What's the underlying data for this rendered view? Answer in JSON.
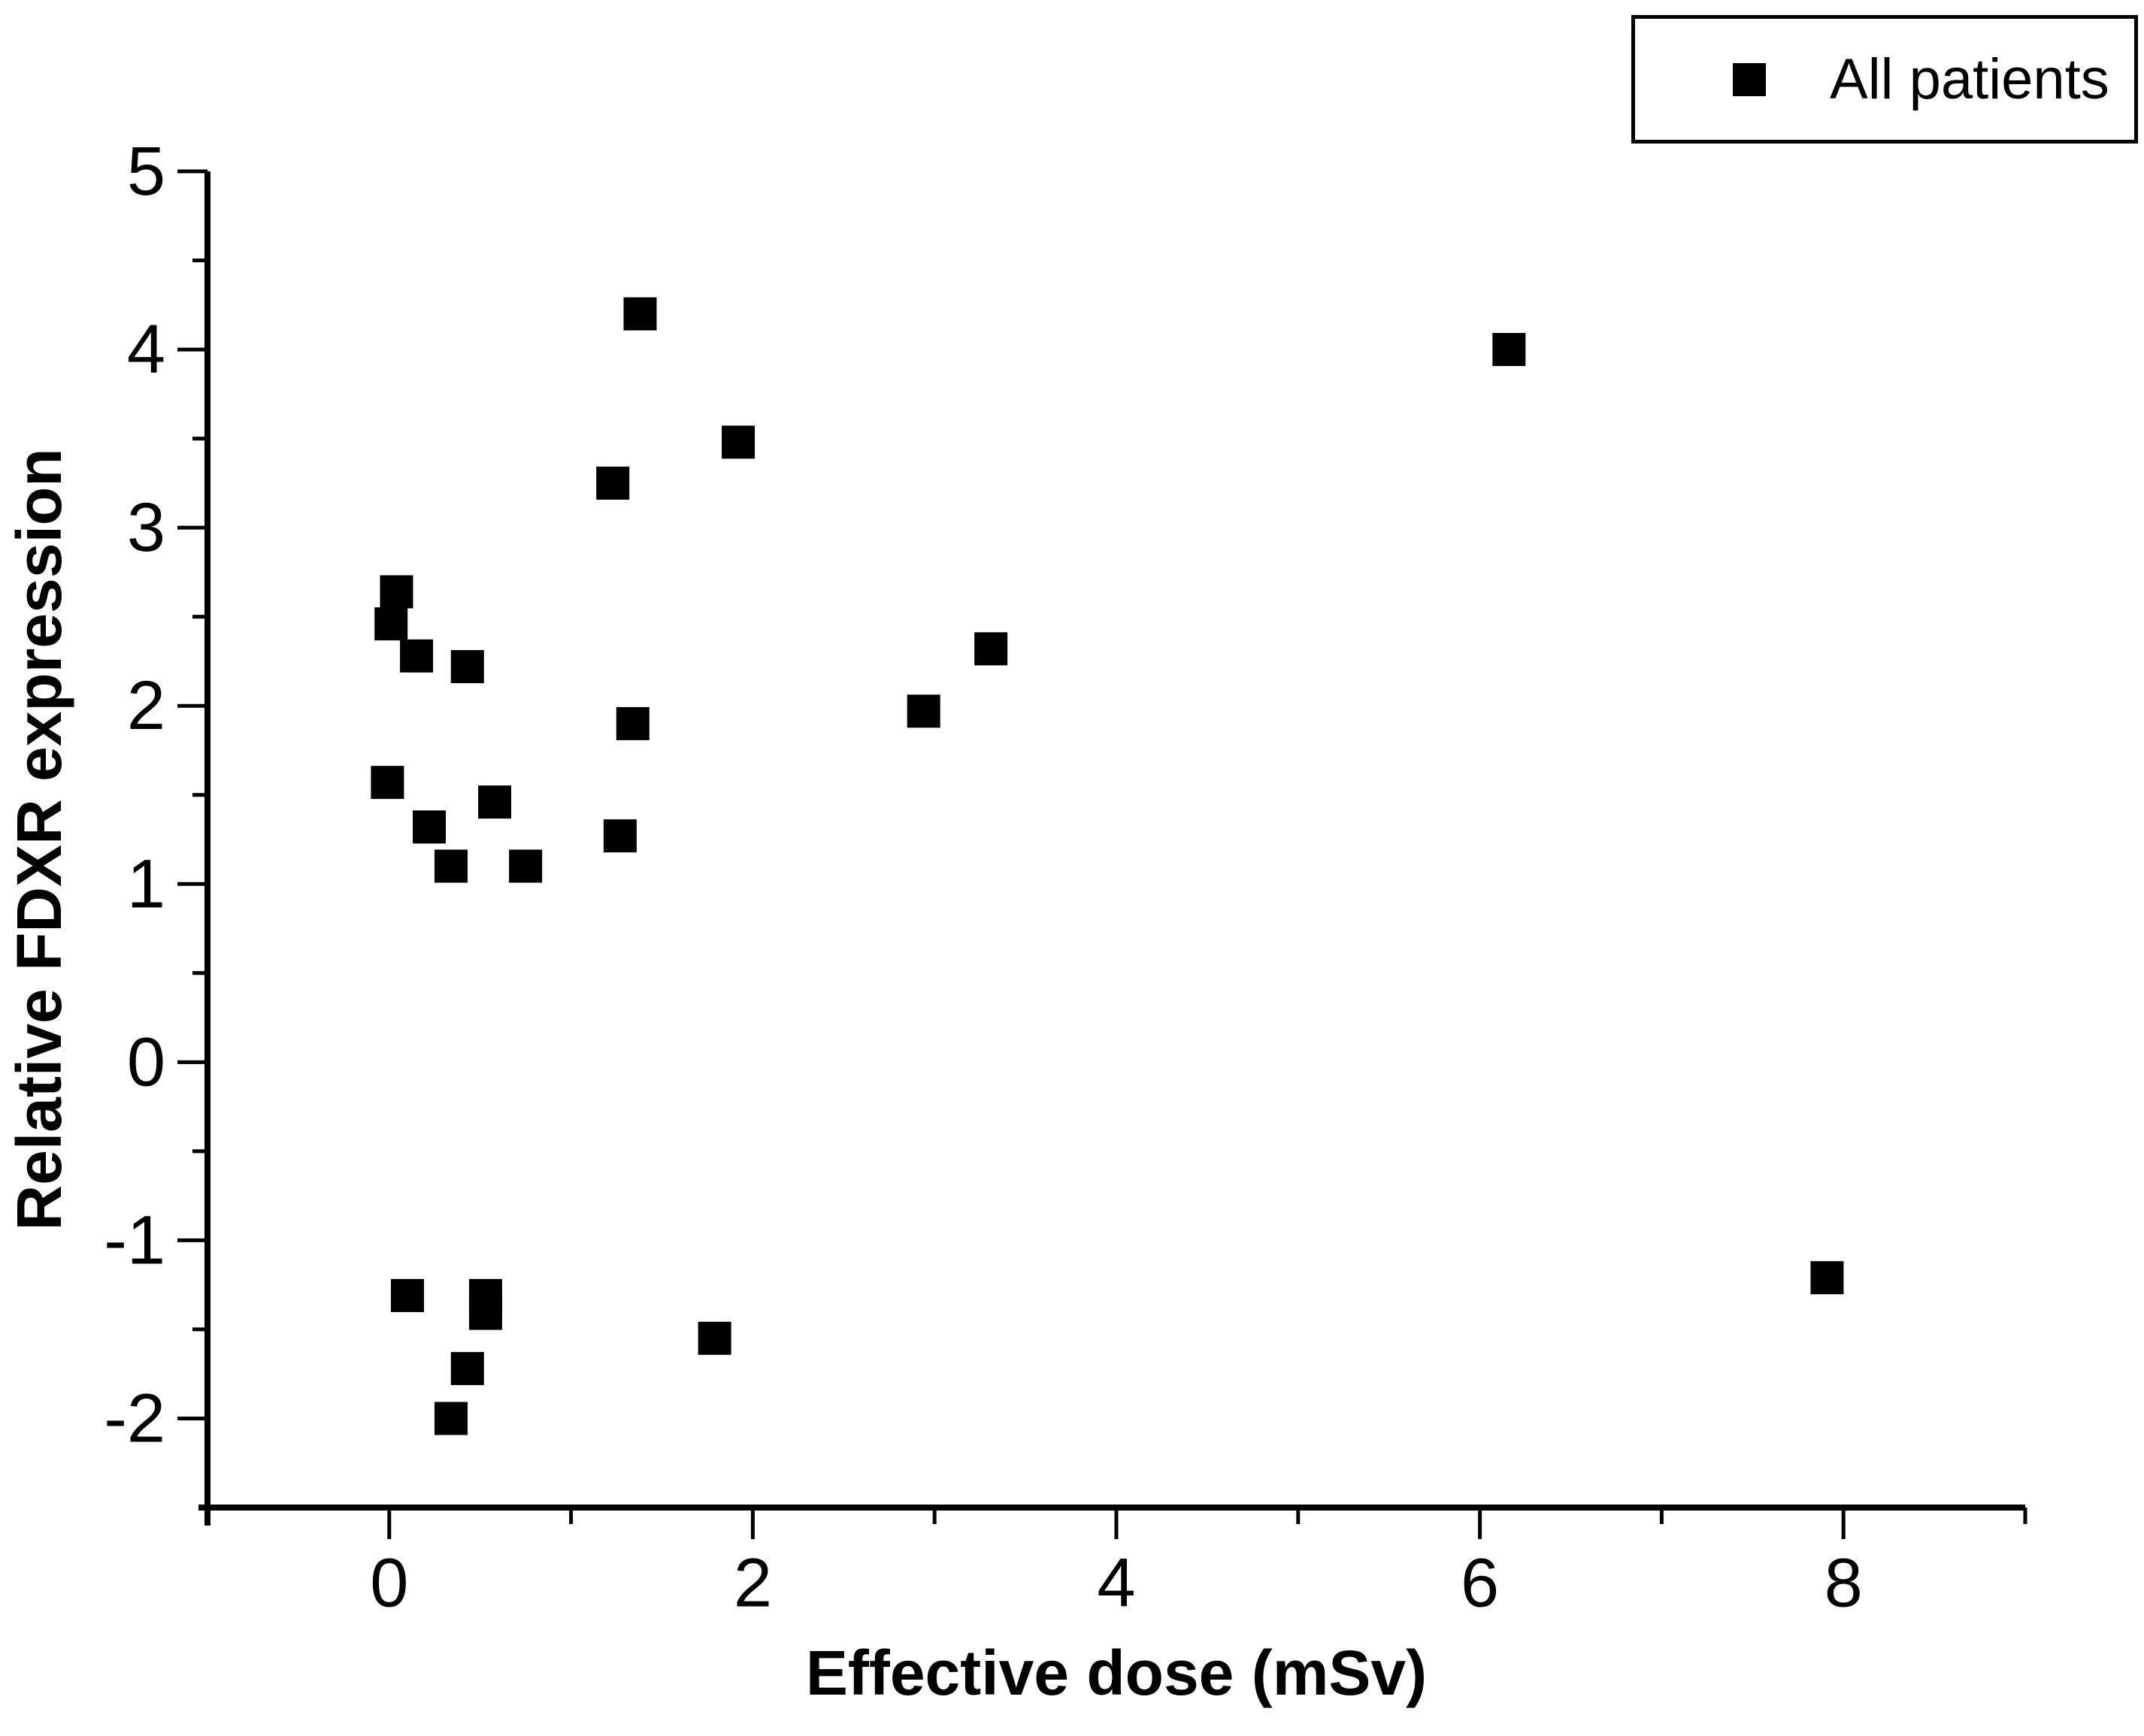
{
  "figure": {
    "background_color": "#ffffff",
    "foreground_color": "#000000",
    "legend": {
      "label": "All patients",
      "marker": "filled-square",
      "marker_color": "#000000",
      "position": "top-right"
    }
  },
  "chart_data": {
    "type": "scatter",
    "title": "",
    "xlabel": "Effective dose (mSv)",
    "ylabel": "Relative FDXR expression",
    "xlim": [
      -1,
      9
    ],
    "ylim": [
      -2.5,
      5
    ],
    "grid": false,
    "legend_position": "top-right",
    "x_major_ticks": [
      0,
      2,
      4,
      6,
      8
    ],
    "x_minor_ticks": [
      1,
      3,
      5,
      7,
      9
    ],
    "y_major_ticks": [
      -2,
      -1,
      0,
      1,
      2,
      3,
      4,
      5
    ],
    "y_minor_ticks": [
      -1.5,
      -0.5,
      0.5,
      1.5,
      2.5,
      3.5,
      4.5
    ],
    "x_tick_labels": [
      "0",
      "2",
      "4",
      "6",
      "8"
    ],
    "y_tick_labels": [
      "-2",
      "-1",
      "0",
      "1",
      "2",
      "3",
      "4",
      "5"
    ],
    "series": [
      {
        "name": "All patients",
        "marker": "square",
        "marker_size_px": 44,
        "color": "#000000",
        "points": [
          [
            0.01,
            2.46
          ],
          [
            0.04,
            2.64
          ],
          [
            0.15,
            2.28
          ],
          [
            0.43,
            2.22
          ],
          [
            1.23,
            3.25
          ],
          [
            1.38,
            4.2
          ],
          [
            1.92,
            3.48
          ],
          [
            -0.01,
            1.57
          ],
          [
            0.22,
            1.32
          ],
          [
            0.34,
            1.1
          ],
          [
            0.58,
            1.46
          ],
          [
            0.75,
            1.1
          ],
          [
            1.27,
            1.27
          ],
          [
            1.34,
            1.9
          ],
          [
            2.94,
            1.97
          ],
          [
            3.31,
            2.32
          ],
          [
            6.16,
            4.0
          ],
          [
            7.91,
            -1.21
          ],
          [
            0.1,
            -1.31
          ],
          [
            0.53,
            -1.31
          ],
          [
            0.53,
            -1.41
          ],
          [
            0.43,
            -1.72
          ],
          [
            0.34,
            -2.0
          ],
          [
            1.79,
            -1.55
          ]
        ]
      }
    ]
  }
}
